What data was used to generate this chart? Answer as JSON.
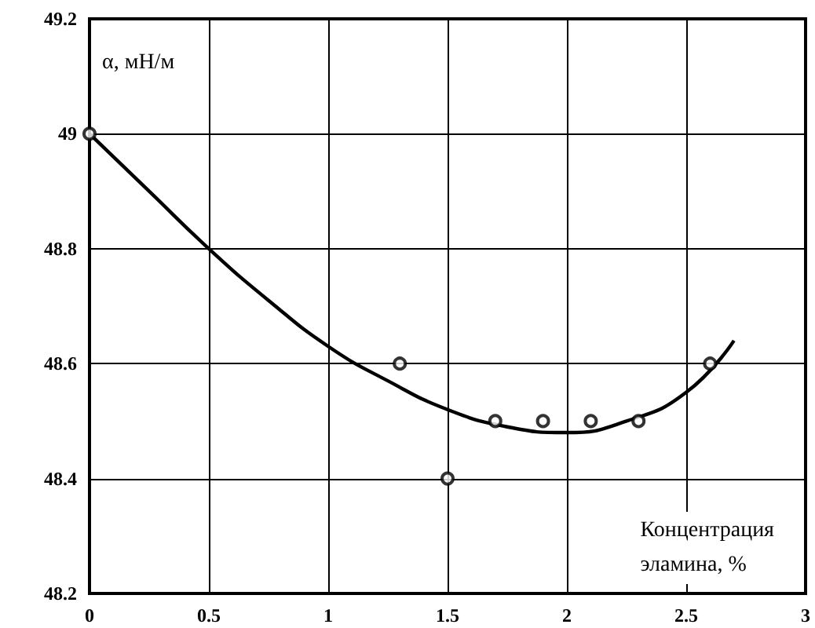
{
  "chart_data": {
    "type": "scatter",
    "xlabel": "Концентрация\nэламина, %",
    "ylabel": "α, мН/м",
    "xlim": [
      0,
      3
    ],
    "xticks": [
      0,
      0.5,
      1,
      1.5,
      2,
      2.5,
      3
    ],
    "ylim": [
      48.2,
      49.2
    ],
    "yticks": [
      48.2,
      48.4,
      48.6,
      48.8,
      49,
      49.2
    ],
    "grid": true,
    "series": [
      {
        "color": "#000000",
        "marker": "circle",
        "x": [
          0,
          1.3,
          1.5,
          1.7,
          1.9,
          2.1,
          2.3,
          2.6
        ],
        "values": [
          49,
          48.6,
          48.4,
          48.5,
          48.5,
          48.5,
          48.5,
          48.6
        ]
      },
      {
        "type": "line",
        "color": "#000000",
        "marker": "none",
        "line_style": "solid",
        "x": [
          0,
          0.25,
          0.5,
          0.75,
          1,
          1.25,
          1.5,
          1.75,
          2,
          2.25,
          2.5,
          2.7
        ],
        "values": [
          49,
          48.9,
          48.8,
          48.71,
          48.63,
          48.57,
          48.52,
          48.49,
          48.48,
          48.5,
          48.55,
          48.64
        ]
      }
    ]
  }
}
